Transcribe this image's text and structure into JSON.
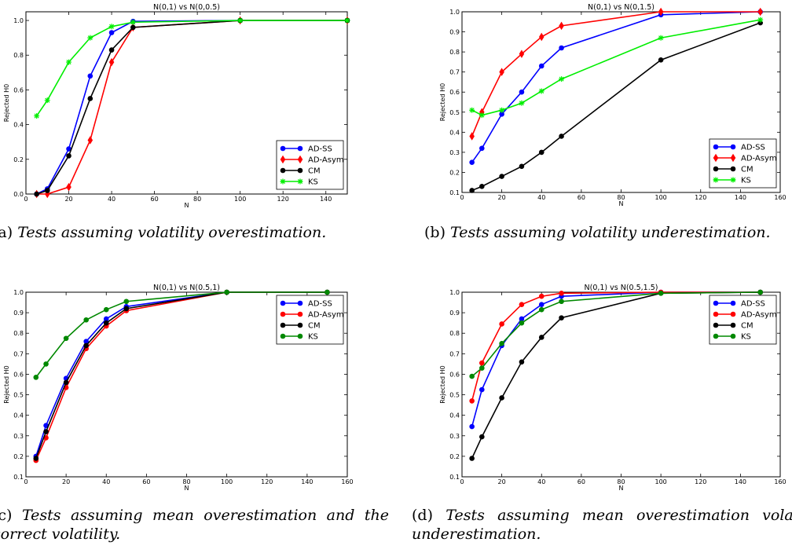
{
  "chart_data": [
    {
      "type": "line",
      "title": "N(0,1) vs N(0,0.5)",
      "xlabel": "N",
      "ylabel": "Rejected H0",
      "xlim": [
        0,
        150
      ],
      "ylim": [
        0.0,
        1.05
      ],
      "xticks": [
        0,
        20,
        40,
        60,
        80,
        100,
        120,
        140
      ],
      "yticks": [
        0.0,
        0.2,
        0.4,
        0.6,
        0.8,
        1.0
      ],
      "xtick_labels": [
        "0",
        "20",
        "40",
        "60",
        "80",
        "100",
        "120",
        "140"
      ],
      "ytick_labels": [
        "0.0",
        "0.2",
        "0.4",
        "0.6",
        "0.8",
        "1.0"
      ],
      "legend_position": "bottom-right",
      "x": [
        5,
        10,
        20,
        30,
        40,
        50,
        100,
        150
      ],
      "series": [
        {
          "name": "AD-SS",
          "color": "#0000ff",
          "marker": "circle",
          "values": [
            0.0,
            0.03,
            0.26,
            0.68,
            0.93,
            0.995,
            1.0,
            1.0
          ]
        },
        {
          "name": "AD-Asym",
          "color": "#ff0000",
          "marker": "diamond",
          "values": [
            0.0,
            0.0,
            0.04,
            0.31,
            0.76,
            0.96,
            1.0,
            1.0
          ]
        },
        {
          "name": "CM",
          "color": "#000000",
          "marker": "circle",
          "values": [
            0.0,
            0.02,
            0.22,
            0.55,
            0.83,
            0.96,
            1.0,
            1.0
          ]
        },
        {
          "name": "KS",
          "color": "#00ee00",
          "marker": "star",
          "values": [
            0.45,
            0.54,
            0.76,
            0.9,
            0.965,
            0.99,
            1.0,
            1.0
          ]
        }
      ],
      "caption": {
        "label": "(a)",
        "text": "Tests assuming volatility overestimation."
      }
    },
    {
      "type": "line",
      "title": "N(0,1) vs N(0,1.5)",
      "xlabel": "N",
      "ylabel": "Rejected H0",
      "xlim": [
        0,
        160
      ],
      "ylim": [
        0.1,
        1.0
      ],
      "xticks": [
        0,
        20,
        40,
        60,
        80,
        100,
        120,
        140,
        160
      ],
      "yticks": [
        0.1,
        0.2,
        0.3,
        0.4,
        0.5,
        0.6,
        0.7,
        0.8,
        0.9,
        1.0
      ],
      "xtick_labels": [
        "0",
        "20",
        "40",
        "60",
        "80",
        "100",
        "120",
        "140",
        "160"
      ],
      "ytick_labels": [
        "0.1",
        "0.2",
        "0.3",
        "0.4",
        "0.5",
        "0.6",
        "0.7",
        "0.8",
        "0.9",
        "1.0"
      ],
      "legend_position": "bottom-right",
      "x": [
        5,
        10,
        20,
        30,
        40,
        50,
        100,
        150
      ],
      "series": [
        {
          "name": "AD-SS",
          "color": "#0000ff",
          "marker": "circle",
          "values": [
            0.25,
            0.32,
            0.49,
            0.6,
            0.73,
            0.82,
            0.985,
            1.0
          ]
        },
        {
          "name": "AD-Asym",
          "color": "#ff0000",
          "marker": "diamond",
          "values": [
            0.38,
            0.5,
            0.7,
            0.79,
            0.875,
            0.93,
            1.0,
            1.0
          ]
        },
        {
          "name": "CM",
          "color": "#000000",
          "marker": "circle",
          "values": [
            0.11,
            0.13,
            0.18,
            0.23,
            0.3,
            0.38,
            0.76,
            0.945
          ]
        },
        {
          "name": "KS",
          "color": "#00ee00",
          "marker": "star",
          "values": [
            0.51,
            0.485,
            0.51,
            0.545,
            0.605,
            0.665,
            0.87,
            0.96
          ]
        }
      ],
      "caption": {
        "label": "(b)",
        "text": "Tests assuming volatility underestimation."
      }
    },
    {
      "type": "line",
      "title": "N(0,1) vs N(0.5,1)",
      "xlabel": "N",
      "ylabel": "Rejected H0",
      "xlim": [
        0,
        160
      ],
      "ylim": [
        0.1,
        1.0
      ],
      "xticks": [
        0,
        20,
        40,
        60,
        80,
        100,
        120,
        140,
        160
      ],
      "yticks": [
        0.1,
        0.2,
        0.3,
        0.4,
        0.5,
        0.6,
        0.7,
        0.8,
        0.9,
        1.0
      ],
      "xtick_labels": [
        "0",
        "20",
        "40",
        "60",
        "80",
        "100",
        "120",
        "140",
        "160"
      ],
      "ytick_labels": [
        "0.1",
        "0.2",
        "0.3",
        "0.4",
        "0.5",
        "0.6",
        "0.7",
        "0.8",
        "0.9",
        "1.0"
      ],
      "legend_position": "top-right",
      "x": [
        5,
        10,
        20,
        30,
        40,
        50,
        100,
        150
      ],
      "series": [
        {
          "name": "AD-SS",
          "color": "#0000ff",
          "marker": "circle",
          "values": [
            0.2,
            0.35,
            0.58,
            0.76,
            0.87,
            0.93,
            1.0,
            1.0
          ]
        },
        {
          "name": "AD-Asym",
          "color": "#ff0000",
          "marker": "circle",
          "values": [
            0.18,
            0.29,
            0.535,
            0.725,
            0.835,
            0.91,
            1.0,
            1.0
          ]
        },
        {
          "name": "CM",
          "color": "#000000",
          "marker": "circle",
          "values": [
            0.19,
            0.32,
            0.56,
            0.74,
            0.85,
            0.92,
            1.0,
            1.0
          ]
        },
        {
          "name": "KS",
          "color": "#008800",
          "marker": "circle",
          "values": [
            0.585,
            0.65,
            0.775,
            0.865,
            0.915,
            0.955,
            1.0,
            1.0
          ]
        }
      ],
      "caption": {
        "label": "(c)",
        "text": "Tests assuming mean overestimation and the correct volatility."
      }
    },
    {
      "type": "line",
      "title": "N(0,1) vs N(0.5,1.5)",
      "xlabel": "N",
      "ylabel": "Rejected H0",
      "xlim": [
        0,
        160
      ],
      "ylim": [
        0.1,
        1.0
      ],
      "xticks": [
        0,
        20,
        40,
        60,
        80,
        100,
        120,
        140,
        160
      ],
      "yticks": [
        0.1,
        0.2,
        0.3,
        0.4,
        0.5,
        0.6,
        0.7,
        0.8,
        0.9,
        1.0
      ],
      "xtick_labels": [
        "0",
        "20",
        "40",
        "60",
        "80",
        "100",
        "120",
        "140",
        "160"
      ],
      "ytick_labels": [
        "0.1",
        "0.2",
        "0.3",
        "0.4",
        "0.5",
        "0.6",
        "0.7",
        "0.8",
        "0.9",
        "1.0"
      ],
      "legend_position": "top-right",
      "x": [
        5,
        10,
        20,
        30,
        40,
        50,
        100,
        150
      ],
      "series": [
        {
          "name": "AD-SS",
          "color": "#0000ff",
          "marker": "circle",
          "values": [
            0.345,
            0.525,
            0.74,
            0.87,
            0.94,
            0.98,
            1.0,
            1.0
          ]
        },
        {
          "name": "AD-Asym",
          "color": "#ff0000",
          "marker": "circle",
          "values": [
            0.47,
            0.655,
            0.845,
            0.94,
            0.98,
            0.995,
            1.0,
            1.0
          ]
        },
        {
          "name": "CM",
          "color": "#000000",
          "marker": "circle",
          "values": [
            0.19,
            0.295,
            0.485,
            0.66,
            0.78,
            0.875,
            0.995,
            1.0
          ]
        },
        {
          "name": "KS",
          "color": "#008800",
          "marker": "circle",
          "values": [
            0.59,
            0.63,
            0.75,
            0.85,
            0.915,
            0.955,
            0.995,
            1.0
          ]
        }
      ],
      "caption": {
        "label": "(d)",
        "text": "Tests assuming mean overestimation volatility underestimation."
      }
    }
  ]
}
